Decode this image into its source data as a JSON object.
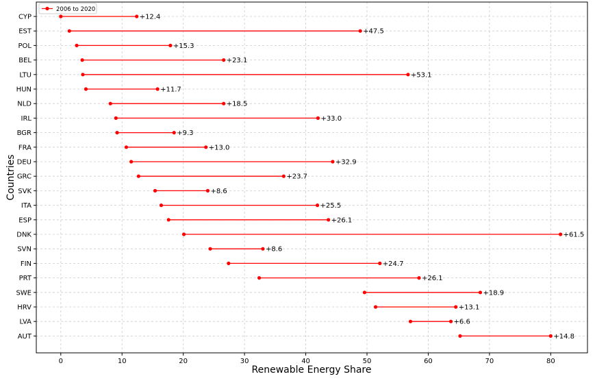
{
  "chart_data": {
    "type": "dumbbell",
    "xlabel": "Renewable Energy Share",
    "ylabel": "Countries",
    "xlim": [
      -4,
      86
    ],
    "xticks": [
      0,
      10,
      20,
      30,
      40,
      50,
      60,
      70,
      80
    ],
    "grid": true,
    "legend": {
      "label": "2006 to 2020",
      "position": "top-left"
    },
    "colors": {
      "series": "#ff0000",
      "grid": "#cccccc"
    },
    "rows": [
      {
        "country": "CYP",
        "start": 0.0,
        "end": 12.4,
        "change": "+12.4"
      },
      {
        "country": "EST",
        "start": 1.4,
        "end": 48.9,
        "change": "+47.5"
      },
      {
        "country": "POL",
        "start": 2.6,
        "end": 17.9,
        "change": "+15.3"
      },
      {
        "country": "BEL",
        "start": 3.5,
        "end": 26.6,
        "change": "+23.1"
      },
      {
        "country": "LTU",
        "start": 3.6,
        "end": 56.7,
        "change": "+53.1"
      },
      {
        "country": "HUN",
        "start": 4.1,
        "end": 15.8,
        "change": "+11.7"
      },
      {
        "country": "NLD",
        "start": 8.1,
        "end": 26.6,
        "change": "+18.5"
      },
      {
        "country": "IRL",
        "start": 9.0,
        "end": 42.0,
        "change": "+33.0"
      },
      {
        "country": "BGR",
        "start": 9.2,
        "end": 18.5,
        "change": "+9.3"
      },
      {
        "country": "FRA",
        "start": 10.7,
        "end": 23.7,
        "change": "+13.0"
      },
      {
        "country": "DEU",
        "start": 11.5,
        "end": 44.4,
        "change": "+32.9"
      },
      {
        "country": "GRC",
        "start": 12.7,
        "end": 36.4,
        "change": "+23.7"
      },
      {
        "country": "SVK",
        "start": 15.4,
        "end": 24.0,
        "change": "+8.6"
      },
      {
        "country": "ITA",
        "start": 16.4,
        "end": 41.9,
        "change": "+25.5"
      },
      {
        "country": "ESP",
        "start": 17.6,
        "end": 43.7,
        "change": "+26.1"
      },
      {
        "country": "DNK",
        "start": 20.1,
        "end": 81.6,
        "change": "+61.5"
      },
      {
        "country": "SVN",
        "start": 24.4,
        "end": 33.0,
        "change": "+8.6"
      },
      {
        "country": "FIN",
        "start": 27.4,
        "end": 52.1,
        "change": "+24.7"
      },
      {
        "country": "PRT",
        "start": 32.4,
        "end": 58.5,
        "change": "+26.1"
      },
      {
        "country": "SWE",
        "start": 49.6,
        "end": 68.5,
        "change": "+18.9"
      },
      {
        "country": "HRV",
        "start": 51.4,
        "end": 64.5,
        "change": "+13.1"
      },
      {
        "country": "LVA",
        "start": 57.1,
        "end": 63.7,
        "change": "+6.6"
      },
      {
        "country": "AUT",
        "start": 65.2,
        "end": 80.0,
        "change": "+14.8"
      }
    ]
  }
}
